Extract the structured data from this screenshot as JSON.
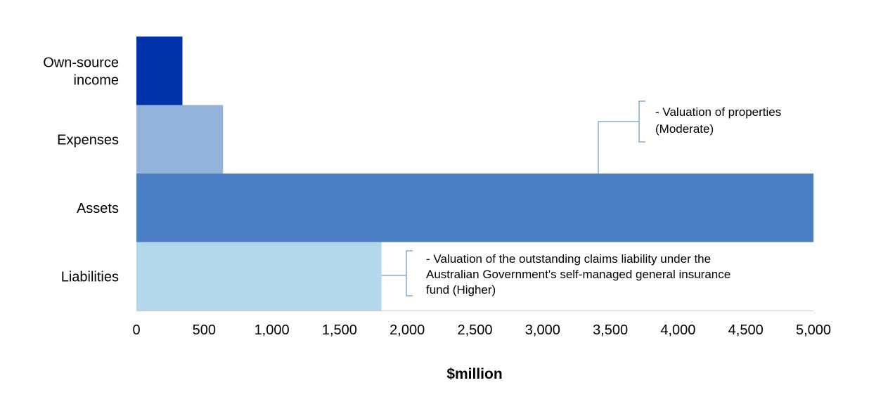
{
  "chart_data": {
    "type": "bar",
    "orientation": "horizontal",
    "categories": [
      {
        "lines": [
          "Own-source",
          "income"
        ]
      },
      {
        "lines": [
          "Expenses"
        ]
      },
      {
        "lines": [
          "Assets"
        ]
      },
      {
        "lines": [
          "Liabilities"
        ]
      }
    ],
    "values": [
      340,
      640,
      5010,
      1810
    ],
    "colors": [
      "#0033aa",
      "#93b3db",
      "#4a80c3",
      "#b3d8ec"
    ],
    "xlim": [
      0,
      5000
    ],
    "xticks": [
      0,
      500,
      1000,
      1500,
      2000,
      2500,
      3000,
      3500,
      4000,
      4500,
      5000
    ],
    "xtick_labels": [
      "0",
      "500",
      "1,000",
      "1,500",
      "2,000",
      "2,500",
      "3,000",
      "3,500",
      "4,000",
      "4,500",
      "5,000"
    ],
    "xlabel": "$million",
    "title": "",
    "grid": false,
    "annotations": [
      {
        "category_index": 2,
        "lines": [
          "- Valuation of properties",
          "(Moderate)"
        ]
      },
      {
        "category_index": 3,
        "lines": [
          "- Valuation of the outstanding claims liability under the",
          "Australian Government's self-managed general insurance",
          "fund (Higher)"
        ]
      }
    ],
    "connector_color": "#4a80c3",
    "axis_color": "#c8c8c8"
  }
}
